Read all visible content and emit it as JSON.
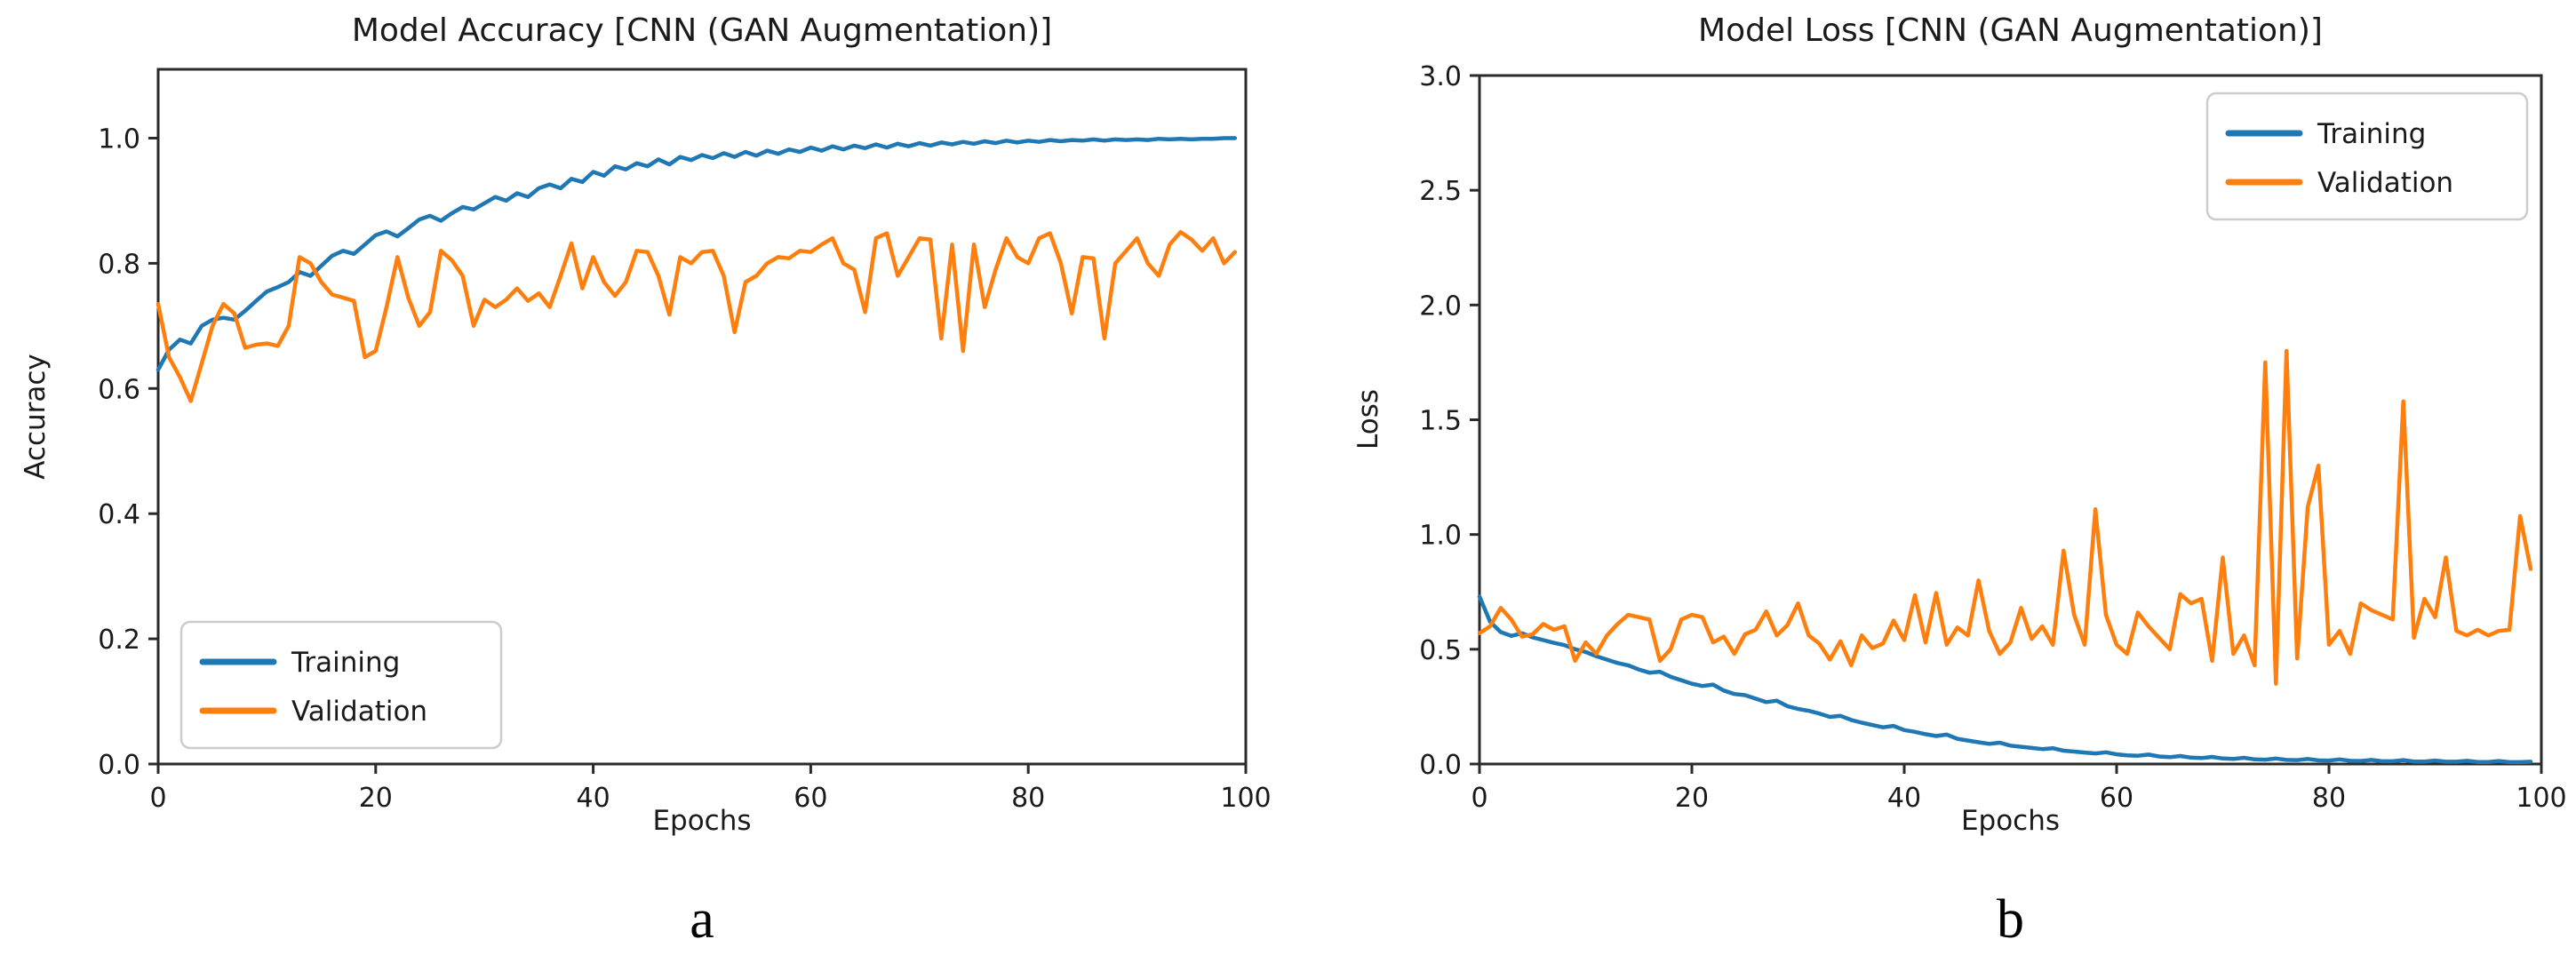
{
  "figure": {
    "background": "#ffffff"
  },
  "colors": {
    "training": "#1f77b4",
    "validation": "#ff7f0e",
    "axis": "#2a2a2a",
    "text": "#1a1a1a",
    "legend_border": "#cccccc",
    "legend_fill": "#ffffff"
  },
  "epochs": [
    0,
    1,
    2,
    3,
    4,
    5,
    6,
    7,
    8,
    9,
    10,
    11,
    12,
    13,
    14,
    15,
    16,
    17,
    18,
    19,
    20,
    21,
    22,
    23,
    24,
    25,
    26,
    27,
    28,
    29,
    30,
    31,
    32,
    33,
    34,
    35,
    36,
    37,
    38,
    39,
    40,
    41,
    42,
    43,
    44,
    45,
    46,
    47,
    48,
    49,
    50,
    51,
    52,
    53,
    54,
    55,
    56,
    57,
    58,
    59,
    60,
    61,
    62,
    63,
    64,
    65,
    66,
    67,
    68,
    69,
    70,
    71,
    72,
    73,
    74,
    75,
    76,
    77,
    78,
    79,
    80,
    81,
    82,
    83,
    84,
    85,
    86,
    87,
    88,
    89,
    90,
    91,
    92,
    93,
    94,
    95,
    96,
    97,
    98,
    99
  ],
  "chart_data": [
    {
      "type": "line",
      "title": "Model Accuracy [CNN (GAN Augmentation)]",
      "xlabel": "Epochs",
      "ylabel": "Accuracy",
      "caption": "a",
      "xlim": [
        0,
        100
      ],
      "ylim": [
        0,
        1.11
      ],
      "xtick_values": [
        0,
        20,
        40,
        60,
        80,
        100
      ],
      "xtick_labels": [
        "0",
        "20",
        "40",
        "60",
        "80",
        "100"
      ],
      "ytick_values": [
        0.0,
        0.2,
        0.4,
        0.6,
        0.8,
        1.0
      ],
      "ytick_labels": [
        "0.0",
        "0.2",
        "0.4",
        "0.6",
        "0.8",
        "1.0"
      ],
      "grid": false,
      "legend_position": "lower-left",
      "series": [
        {
          "name": "Training",
          "color": "#1f77b4",
          "values": [
            0.63,
            0.662,
            0.678,
            0.672,
            0.7,
            0.71,
            0.713,
            0.71,
            0.724,
            0.74,
            0.755,
            0.762,
            0.77,
            0.786,
            0.78,
            0.796,
            0.812,
            0.82,
            0.815,
            0.83,
            0.845,
            0.851,
            0.843,
            0.856,
            0.87,
            0.876,
            0.868,
            0.88,
            0.89,
            0.886,
            0.896,
            0.906,
            0.9,
            0.912,
            0.906,
            0.92,
            0.926,
            0.92,
            0.935,
            0.93,
            0.946,
            0.94,
            0.955,
            0.95,
            0.96,
            0.955,
            0.966,
            0.958,
            0.97,
            0.965,
            0.973,
            0.968,
            0.976,
            0.97,
            0.978,
            0.972,
            0.98,
            0.975,
            0.982,
            0.978,
            0.985,
            0.98,
            0.987,
            0.982,
            0.988,
            0.984,
            0.99,
            0.985,
            0.991,
            0.987,
            0.992,
            0.988,
            0.993,
            0.99,
            0.994,
            0.991,
            0.995,
            0.992,
            0.996,
            0.993,
            0.996,
            0.994,
            0.997,
            0.995,
            0.997,
            0.996,
            0.998,
            0.996,
            0.998,
            0.997,
            0.998,
            0.997,
            0.999,
            0.998,
            0.999,
            0.998,
            0.999,
            0.999,
            1.0,
            1.0
          ]
        },
        {
          "name": "Validation",
          "color": "#ff7f0e",
          "values": [
            0.735,
            0.65,
            0.618,
            0.58,
            0.64,
            0.7,
            0.735,
            0.72,
            0.665,
            0.67,
            0.672,
            0.668,
            0.7,
            0.81,
            0.8,
            0.77,
            0.75,
            0.745,
            0.74,
            0.65,
            0.66,
            0.73,
            0.81,
            0.745,
            0.7,
            0.722,
            0.82,
            0.805,
            0.78,
            0.7,
            0.742,
            0.73,
            0.742,
            0.76,
            0.74,
            0.752,
            0.73,
            0.78,
            0.832,
            0.76,
            0.81,
            0.77,
            0.748,
            0.77,
            0.82,
            0.818,
            0.78,
            0.718,
            0.81,
            0.8,
            0.818,
            0.82,
            0.78,
            0.69,
            0.77,
            0.78,
            0.8,
            0.81,
            0.808,
            0.82,
            0.818,
            0.83,
            0.84,
            0.8,
            0.79,
            0.722,
            0.84,
            0.848,
            0.78,
            0.81,
            0.84,
            0.838,
            0.68,
            0.83,
            0.66,
            0.83,
            0.73,
            0.79,
            0.84,
            0.81,
            0.8,
            0.84,
            0.848,
            0.8,
            0.72,
            0.81,
            0.808,
            0.68,
            0.8,
            0.82,
            0.84,
            0.8,
            0.78,
            0.83,
            0.85,
            0.838,
            0.82,
            0.84,
            0.8,
            0.818
          ]
        }
      ]
    },
    {
      "type": "line",
      "title": "Model Loss [CNN (GAN Augmentation)]",
      "xlabel": "Epochs",
      "ylabel": "Loss",
      "caption": "b",
      "xlim": [
        0,
        100
      ],
      "ylim": [
        0,
        3.0
      ],
      "xtick_values": [
        0,
        20,
        40,
        60,
        80,
        100
      ],
      "xtick_labels": [
        "0",
        "20",
        "40",
        "60",
        "80",
        "100"
      ],
      "ytick_values": [
        0.0,
        0.5,
        1.0,
        1.5,
        2.0,
        2.5,
        3.0
      ],
      "ytick_labels": [
        "0.0",
        "0.5",
        "1.0",
        "1.5",
        "2.0",
        "2.5",
        "3.0"
      ],
      "grid": false,
      "legend_position": "upper-right",
      "series": [
        {
          "name": "Training",
          "color": "#1f77b4",
          "values": [
            0.73,
            0.62,
            0.575,
            0.558,
            0.57,
            0.552,
            0.54,
            0.528,
            0.518,
            0.5,
            0.488,
            0.47,
            0.455,
            0.44,
            0.43,
            0.412,
            0.398,
            0.402,
            0.38,
            0.365,
            0.35,
            0.34,
            0.346,
            0.32,
            0.305,
            0.3,
            0.285,
            0.27,
            0.276,
            0.252,
            0.24,
            0.232,
            0.22,
            0.205,
            0.21,
            0.192,
            0.18,
            0.17,
            0.16,
            0.166,
            0.148,
            0.14,
            0.13,
            0.122,
            0.128,
            0.11,
            0.102,
            0.095,
            0.088,
            0.093,
            0.08,
            0.075,
            0.07,
            0.065,
            0.069,
            0.058,
            0.054,
            0.05,
            0.046,
            0.051,
            0.042,
            0.038,
            0.036,
            0.041,
            0.033,
            0.03,
            0.035,
            0.028,
            0.026,
            0.031,
            0.024,
            0.022,
            0.027,
            0.02,
            0.019,
            0.024,
            0.018,
            0.017,
            0.022,
            0.016,
            0.015,
            0.02,
            0.014,
            0.013,
            0.018,
            0.012,
            0.012,
            0.017,
            0.011,
            0.011,
            0.015,
            0.01,
            0.01,
            0.014,
            0.009,
            0.009,
            0.013,
            0.008,
            0.008,
            0.01
          ]
        },
        {
          "name": "Validation",
          "color": "#ff7f0e",
          "values": [
            0.57,
            0.6,
            0.68,
            0.63,
            0.555,
            0.565,
            0.61,
            0.585,
            0.6,
            0.45,
            0.53,
            0.48,
            0.56,
            0.61,
            0.65,
            0.64,
            0.63,
            0.45,
            0.5,
            0.63,
            0.65,
            0.64,
            0.53,
            0.555,
            0.48,
            0.565,
            0.585,
            0.665,
            0.56,
            0.605,
            0.7,
            0.56,
            0.525,
            0.455,
            0.535,
            0.43,
            0.56,
            0.505,
            0.525,
            0.625,
            0.54,
            0.735,
            0.53,
            0.745,
            0.52,
            0.595,
            0.56,
            0.8,
            0.58,
            0.48,
            0.53,
            0.68,
            0.545,
            0.6,
            0.52,
            0.93,
            0.65,
            0.52,
            1.11,
            0.65,
            0.52,
            0.48,
            0.66,
            0.6,
            0.55,
            0.5,
            0.74,
            0.7,
            0.72,
            0.45,
            0.9,
            0.48,
            0.56,
            0.43,
            1.75,
            0.35,
            1.8,
            0.46,
            1.12,
            1.3,
            0.52,
            0.58,
            0.48,
            0.7,
            0.67,
            0.65,
            0.63,
            1.58,
            0.55,
            0.72,
            0.64,
            0.9,
            0.58,
            0.56,
            0.585,
            0.56,
            0.58,
            0.585,
            1.08,
            0.85
          ]
        }
      ]
    }
  ]
}
